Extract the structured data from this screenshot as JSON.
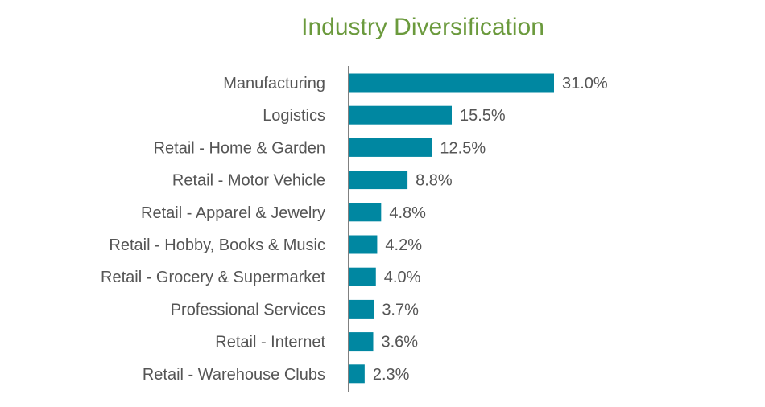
{
  "chart_data": {
    "type": "bar",
    "orientation": "horizontal",
    "title": "Industry Diversification",
    "xlabel": "",
    "ylabel": "",
    "categories": [
      "Manufacturing",
      "Logistics",
      "Retail - Home & Garden",
      "Retail - Motor Vehicle",
      "Retail - Apparel & Jewelry",
      "Retail - Hobby, Books & Music",
      "Retail - Grocery & Supermarket",
      "Professional Services",
      "Retail - Internet",
      "Retail - Warehouse Clubs"
    ],
    "values": [
      31.0,
      15.5,
      12.5,
      8.8,
      4.8,
      4.2,
      4.0,
      3.7,
      3.6,
      2.3
    ],
    "value_labels": [
      "31.0%",
      "15.5%",
      "12.5%",
      "8.8%",
      "4.8%",
      "4.2%",
      "4.0%",
      "3.7%",
      "3.6%",
      "2.3%"
    ],
    "xlim": [
      0,
      31.0
    ],
    "grid": false,
    "legend": "none"
  },
  "colors": {
    "bar": "#0087a1",
    "title": "#6b9a3d",
    "axis": "#808080",
    "text": "#555555"
  }
}
